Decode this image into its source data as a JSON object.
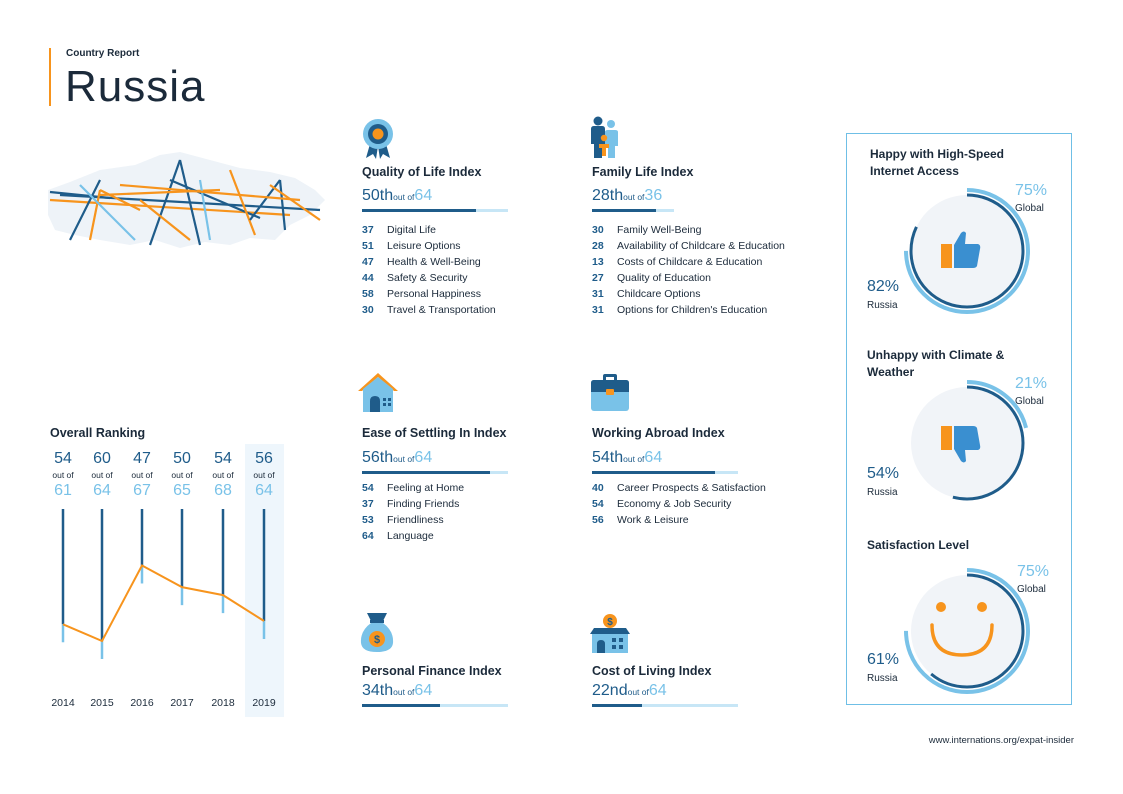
{
  "header": {
    "report_label": "Country Report",
    "country": "Russia"
  },
  "indices": {
    "quality_of_life": {
      "title": "Quality of Life Index",
      "rank": "50th",
      "out_of": "out of",
      "total": "64",
      "rank_value": 50,
      "items": [
        {
          "value": "37",
          "label": "Digital Life"
        },
        {
          "value": "51",
          "label": "Leisure Options"
        },
        {
          "value": "47",
          "label": "Health & Well-Being"
        },
        {
          "value": "44",
          "label": "Safety & Security"
        },
        {
          "value": "58",
          "label": "Personal Happiness"
        },
        {
          "value": "30",
          "label": "Travel & Transportation"
        }
      ]
    },
    "family_life": {
      "title": "Family Life Index",
      "rank": "28th",
      "out_of": "out of",
      "total": "36",
      "rank_value": 28,
      "items": [
        {
          "value": "30",
          "label": "Family Well-Being"
        },
        {
          "value": "28",
          "label": "Availability of Childcare & Education"
        },
        {
          "value": "13",
          "label": "Costs of Childcare & Education"
        },
        {
          "value": "27",
          "label": "Quality of Education"
        },
        {
          "value": "31",
          "label": "Childcare Options"
        },
        {
          "value": "31",
          "label": "Options for Children's Education"
        }
      ]
    },
    "ease_of_settling": {
      "title": "Ease of Settling In Index",
      "rank": "56th",
      "out_of": "out of",
      "total": "64",
      "rank_value": 56,
      "items": [
        {
          "value": "54",
          "label": "Feeling at Home"
        },
        {
          "value": "37",
          "label": "Finding Friends"
        },
        {
          "value": "53",
          "label": "Friendliness"
        },
        {
          "value": "64",
          "label": "Language"
        }
      ]
    },
    "working_abroad": {
      "title": "Working Abroad Index",
      "rank": "54th",
      "out_of": "out of",
      "total": "64",
      "rank_value": 54,
      "items": [
        {
          "value": "40",
          "label": "Career Prospects & Satisfaction"
        },
        {
          "value": "54",
          "label": "Economy & Job Security"
        },
        {
          "value": "56",
          "label": "Work & Leisure"
        }
      ]
    },
    "personal_finance": {
      "title": "Personal Finance Index",
      "rank": "34th",
      "out_of": "out of",
      "total": "64",
      "rank_value": 34
    },
    "cost_of_living": {
      "title": "Cost of Living Index",
      "rank": "22nd",
      "out_of": "out of",
      "total": "64",
      "rank_value": 22
    }
  },
  "overall": {
    "title": "Overall Ranking",
    "out_of": "out of",
    "years": [
      {
        "year": "2014",
        "rank": "54",
        "total": "61"
      },
      {
        "year": "2015",
        "rank": "60",
        "total": "64"
      },
      {
        "year": "2016",
        "rank": "47",
        "total": "67"
      },
      {
        "year": "2017",
        "rank": "50",
        "total": "65"
      },
      {
        "year": "2018",
        "rank": "54",
        "total": "68"
      },
      {
        "year": "2019",
        "rank": "56",
        "total": "64"
      }
    ]
  },
  "panel": {
    "internet": {
      "title_line1": "Happy with High-Speed",
      "title_line2": "Internet Access",
      "global_pct": "75%",
      "global_label": "Global",
      "russia_pct": "82%",
      "russia_label": "Russia",
      "global_value": 75,
      "russia_value": 82
    },
    "climate": {
      "title_line1": "Unhappy with Climate &",
      "title_line2": "Weather",
      "global_pct": "21%",
      "global_label": "Global",
      "russia_pct": "54%",
      "russia_label": "Russia",
      "global_value": 21,
      "russia_value": 54
    },
    "satisfaction": {
      "title_line1": "Satisfaction Level",
      "global_pct": "75%",
      "global_label": "Global",
      "russia_pct": "61%",
      "russia_label": "Russia",
      "global_value": 75,
      "russia_value": 61
    }
  },
  "colors": {
    "dark_blue": "#1f5c8a",
    "light_blue": "#79c2e8",
    "orange": "#f7941d",
    "pale": "#c7e6f6"
  },
  "icons": [
    "rosette-icon",
    "family-icon",
    "house-icon",
    "briefcase-icon",
    "money-bag-icon",
    "building-coin-icon",
    "thumbs-up-icon",
    "thumbs-down-icon",
    "smiley-icon",
    "russia-map"
  ],
  "footer": {
    "url": "www.internations.org/expat-insider"
  }
}
